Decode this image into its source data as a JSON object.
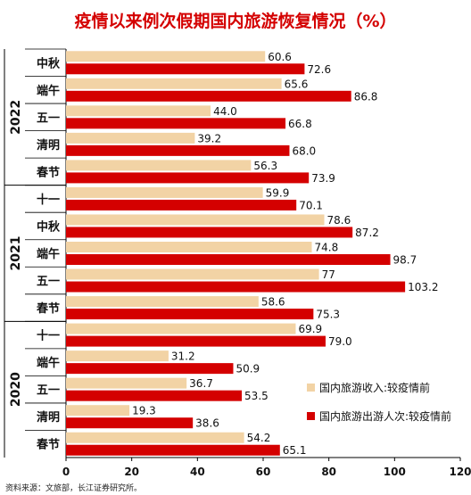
{
  "chart_data": {
    "type": "bar",
    "orientation": "horizontal",
    "title": "疫情以来例次假期国内旅游恢复情况（%）",
    "xlim": [
      0,
      120
    ],
    "xticks": [
      0,
      20,
      40,
      60,
      80,
      100,
      120
    ],
    "groups": [
      {
        "year": "2022",
        "categories": [
          "中秋",
          "端午",
          "五一",
          "清明",
          "春节"
        ]
      },
      {
        "year": "2021",
        "categories": [
          "十一",
          "中秋",
          "端午",
          "五一",
          "春节"
        ]
      },
      {
        "year": "2020",
        "categories": [
          "十一",
          "端午",
          "五一",
          "清明",
          "春节"
        ]
      }
    ],
    "series": [
      {
        "name": "国内旅游收入:较疫情前",
        "color": "#f2d3a5",
        "values": [
          60.6,
          65.6,
          44.0,
          39.2,
          56.3,
          59.9,
          78.6,
          74.8,
          77,
          58.6,
          69.9,
          31.2,
          36.7,
          19.3,
          54.2
        ],
        "labels": [
          "60.6",
          "65.6",
          "44.0",
          "39.2",
          "56.3",
          "59.9",
          "78.6",
          "74.8",
          "77",
          "58.6",
          "69.9",
          "31.2",
          "36.7",
          "19.3",
          "54.2"
        ]
      },
      {
        "name": "国内旅游出游人次:较疫情前",
        "color": "#d40000",
        "values": [
          72.6,
          86.8,
          66.8,
          68.0,
          73.9,
          70.1,
          87.2,
          98.7,
          103.2,
          75.3,
          79.0,
          50.9,
          53.5,
          38.6,
          65.1
        ],
        "labels": [
          "72.6",
          "86.8",
          "66.8",
          "68.0",
          "73.9",
          "70.1",
          "87.2",
          "98.7",
          "103.2",
          "75.3",
          "79.0",
          "50.9",
          "53.5",
          "38.6",
          "65.1"
        ]
      }
    ],
    "legend_position": "lower-right",
    "grid": false
  },
  "source": "资料来源：文旅部，长江证券研究所。"
}
